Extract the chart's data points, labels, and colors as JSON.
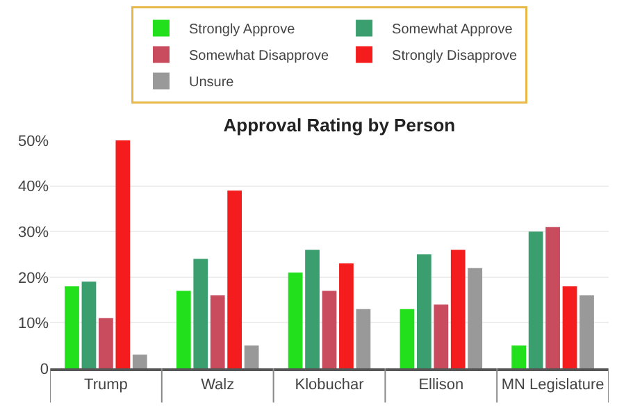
{
  "chart_data": {
    "type": "bar",
    "title": "Approval Rating by Person",
    "categories": [
      "Trump",
      "Walz",
      "Klobuchar",
      "Ellison",
      "MN Legislature"
    ],
    "series": [
      {
        "name": "Strongly Approve",
        "color": "#22e01c",
        "values": [
          18,
          17,
          21,
          13,
          5
        ]
      },
      {
        "name": "Somewhat Approve",
        "color": "#3a9e6e",
        "values": [
          19,
          24,
          26,
          25,
          30
        ]
      },
      {
        "name": "Somewhat Disapprove",
        "color": "#c84b5e",
        "values": [
          11,
          16,
          17,
          14,
          31
        ]
      },
      {
        "name": "Strongly Disapprove",
        "color": "#f41c1c",
        "values": [
          50,
          39,
          23,
          26,
          18
        ]
      },
      {
        "name": "Unsure",
        "color": "#999999",
        "values": [
          3,
          5,
          13,
          22,
          16
        ]
      }
    ],
    "ylim": [
      0,
      50
    ],
    "yticks": [
      {
        "value": 0,
        "label": "0"
      },
      {
        "value": 10,
        "label": "10%"
      },
      {
        "value": 20,
        "label": "20%"
      },
      {
        "value": 30,
        "label": "30%"
      },
      {
        "value": 40,
        "label": "40%"
      },
      {
        "value": 50,
        "label": "50%"
      }
    ],
    "grid": "y",
    "legend": "top"
  }
}
